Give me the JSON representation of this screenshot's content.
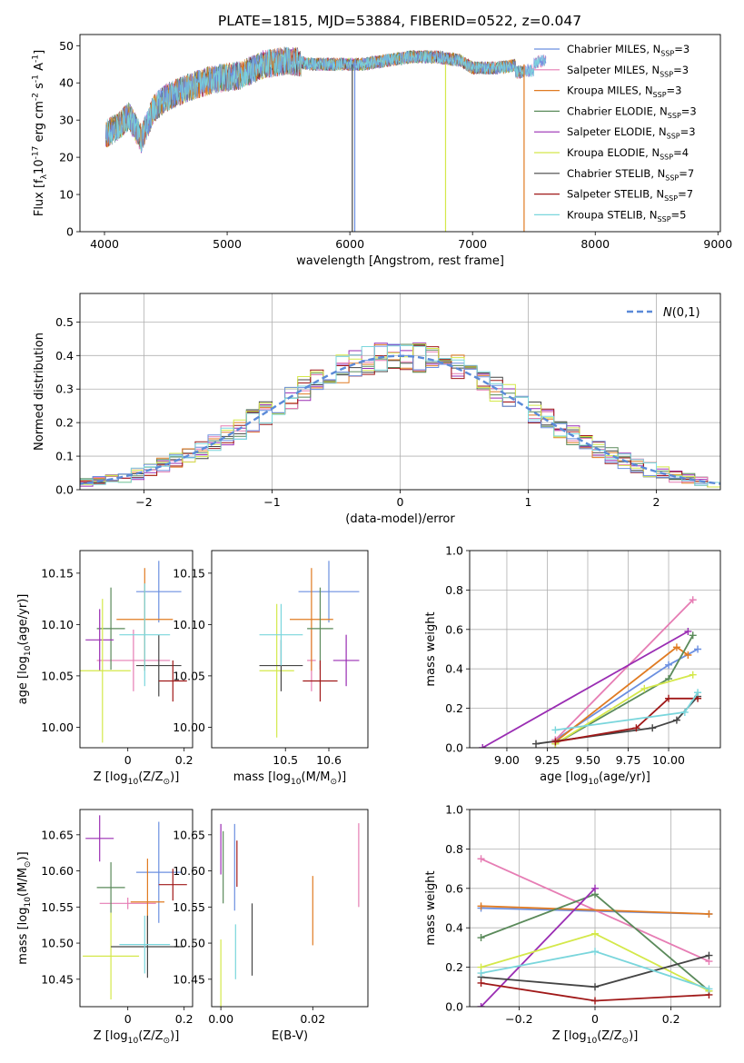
{
  "series_names": [
    "Chabrier MILES, N$_{SSP}$=3",
    "Salpeter MILES, N$_{SSP}$=3",
    "Kroupa MILES, N$_{SSP}$=3",
    "Chabrier ELODIE, N$_{SSP}$=3",
    "Salpeter ELODIE, N$_{SSP}$=3",
    "Kroupa ELODIE, N$_{SSP}$=4",
    "Chabrier STELIB, N$_{SSP}$=7",
    "Salpeter STELIB, N$_{SSP}$=7",
    "Kroupa STELIB, N$_{SSP}$=5"
  ],
  "series_colors": [
    "#6b8fe0",
    "#e67db4",
    "#e07b22",
    "#5a8a5a",
    "#9a2db3",
    "#d4e84a",
    "#454545",
    "#a01818",
    "#7ad6dc"
  ],
  "chart_data": [
    {
      "type": "line",
      "title": "PLATE=1815, MJD=53884, FIBERID=0522, z=0.047",
      "xlabel": "wavelength [Angstrom, rest frame]",
      "ylabel": "Flux [f$_\\lambda$10$^{-17}$ erg cm$^{-2}$ s$^{-1}$ A$^{-1}$]",
      "xlim": [
        3800,
        9020
      ],
      "ylim": [
        0,
        53
      ],
      "xticks": [
        4000,
        5000,
        6000,
        7000,
        8000,
        9000
      ],
      "yticks": [
        0,
        10,
        20,
        30,
        40,
        50
      ],
      "legend_position": "upper-right",
      "spectrum_envelope": {
        "x": [
          4000,
          4100,
          4200,
          4300,
          4400,
          4500,
          4700,
          4900,
          5100,
          5300,
          5500,
          5700,
          5900,
          6100,
          6300,
          6500,
          6700,
          6900,
          7000,
          7200,
          7400,
          7600
        ],
        "y": [
          26,
          28,
          31,
          25,
          33,
          36,
          39,
          41,
          42,
          45,
          46,
          45,
          45,
          45,
          46,
          47,
          47,
          46,
          44,
          44,
          45,
          46
        ]
      },
      "drop_lines": [
        {
          "x": 6020,
          "series_index": 6
        },
        {
          "x": 6040,
          "series_index": 0
        },
        {
          "x": 6780,
          "series_index": 5
        },
        {
          "x": 7420,
          "series_index": 2
        }
      ]
    },
    {
      "type": "histogram",
      "xlabel": "(data-model)/error",
      "ylabel": "Normed distribution",
      "xlim": [
        -2.5,
        2.5
      ],
      "ylim": [
        0,
        0.585
      ],
      "xticks": [
        -2,
        -1,
        0,
        1,
        2
      ],
      "yticks": [
        0.0,
        0.1,
        0.2,
        0.3,
        0.4,
        0.5
      ],
      "grid": true,
      "reference_curve": {
        "name": "$\\mathcal{N}(0,1)$",
        "mean": 0,
        "sigma": 1
      },
      "legend_position": "upper-right",
      "bin_width": 0.1
    },
    {
      "type": "scatter",
      "xlabel": "Z [log$_{10}$(Z/Z$_\\odot$)]",
      "ylabel": "age  [log$_{10}$(age/yr)]",
      "xlim": [
        -0.17,
        0.23
      ],
      "ylim": [
        9.98,
        10.172
      ],
      "xticks": [
        0.0,
        0.2
      ],
      "yticks": [
        10.0,
        10.05,
        10.1,
        10.15
      ],
      "points": [
        {
          "x": 0.11,
          "y": 10.132,
          "xerr": 0.08,
          "yerr": 0.03
        },
        {
          "x": 0.02,
          "y": 10.065,
          "xerr": 0.13,
          "yerr": 0.03
        },
        {
          "x": 0.06,
          "y": 10.105,
          "xerr": 0.1,
          "yerr": 0.05
        },
        {
          "x": -0.06,
          "y": 10.096,
          "xerr": 0.05,
          "yerr": 0.04
        },
        {
          "x": -0.1,
          "y": 10.085,
          "xerr": 0.05,
          "yerr": 0.03
        },
        {
          "x": -0.09,
          "y": 10.055,
          "xerr": 0.1,
          "yerr": 0.07
        },
        {
          "x": 0.11,
          "y": 10.06,
          "xerr": 0.08,
          "yerr": 0.03
        },
        {
          "x": 0.16,
          "y": 10.045,
          "xerr": 0.05,
          "yerr": 0.02
        },
        {
          "x": 0.06,
          "y": 10.09,
          "xerr": 0.09,
          "yerr": 0.05
        }
      ]
    },
    {
      "type": "scatter",
      "xlabel": "mass [log$_{10}$(M/M$_\\odot$)]",
      "xlim": [
        10.33,
        10.69
      ],
      "ylim": [
        9.98,
        10.172
      ],
      "xticks": [
        10.5,
        10.6
      ],
      "yticks": [
        10.0,
        10.05,
        10.1,
        10.15
      ],
      "points": [
        {
          "x": 10.6,
          "y": 10.132,
          "xerr": 0.07,
          "yerr": 0.03
        },
        {
          "x": 10.56,
          "y": 10.065,
          "xerr": 0.01,
          "yerr": 0.03
        },
        {
          "x": 10.56,
          "y": 10.105,
          "xerr": 0.05,
          "yerr": 0.05
        },
        {
          "x": 10.58,
          "y": 10.096,
          "xerr": 0.03,
          "yerr": 0.04
        },
        {
          "x": 10.64,
          "y": 10.065,
          "xerr": 0.03,
          "yerr": 0.025
        },
        {
          "x": 10.48,
          "y": 10.055,
          "xerr": 0.04,
          "yerr": 0.065
        },
        {
          "x": 10.49,
          "y": 10.06,
          "xerr": 0.05,
          "yerr": 0.025
        },
        {
          "x": 10.58,
          "y": 10.045,
          "xerr": 0.04,
          "yerr": 0.02
        },
        {
          "x": 10.49,
          "y": 10.09,
          "xerr": 0.05,
          "yerr": 0.03
        }
      ]
    },
    {
      "type": "line",
      "xlabel": "age  [log$_{10}$(age/yr)]",
      "ylabel": "mass weight",
      "xlim": [
        8.77,
        10.32
      ],
      "ylim": [
        0,
        1
      ],
      "xticks": [
        9.0,
        9.25,
        9.5,
        9.75,
        10.0
      ],
      "xticklabels": [
        "9.00",
        "9.25",
        "9.50",
        "9.75",
        "10.00"
      ],
      "yticks": [
        0.0,
        0.2,
        0.4,
        0.6,
        0.8,
        1.0
      ],
      "grid": true,
      "series": [
        {
          "x": [
            9.3,
            10.0,
            10.18
          ],
          "y": [
            0.04,
            0.42,
            0.5
          ]
        },
        {
          "x": [
            9.3,
            10.15
          ],
          "y": [
            0.04,
            0.75
          ]
        },
        {
          "x": [
            9.3,
            10.05,
            10.12
          ],
          "y": [
            0.03,
            0.51,
            0.47
          ]
        },
        {
          "x": [
            9.3,
            10.0,
            10.15
          ],
          "y": [
            0.02,
            0.35,
            0.57
          ]
        },
        {
          "x": [
            8.85,
            10.12
          ],
          "y": [
            0.0,
            0.59
          ]
        },
        {
          "x": [
            9.3,
            9.85,
            10.15
          ],
          "y": [
            0.02,
            0.3,
            0.37
          ]
        },
        {
          "x": [
            9.18,
            9.9,
            10.05,
            10.18
          ],
          "y": [
            0.02,
            0.1,
            0.14,
            0.26
          ]
        },
        {
          "x": [
            9.3,
            9.8,
            10.0,
            10.18
          ],
          "y": [
            0.03,
            0.1,
            0.25,
            0.25
          ]
        },
        {
          "x": [
            9.3,
            10.1,
            10.18
          ],
          "y": [
            0.09,
            0.18,
            0.28
          ]
        }
      ]
    },
    {
      "type": "scatter",
      "xlabel": "Z [log$_{10}$(Z/Z$_\\odot$)]",
      "ylabel": "mass [log$_{10}$(M/M$_\\odot$)]",
      "xlim": [
        -0.17,
        0.23
      ],
      "ylim": [
        10.412,
        10.685
      ],
      "xticks": [
        0.0,
        0.2
      ],
      "yticks": [
        10.45,
        10.5,
        10.55,
        10.6,
        10.65
      ],
      "points": [
        {
          "x": 0.11,
          "y": 10.598,
          "xerr": 0.08,
          "yerr": 0.07
        },
        {
          "x": 0.0,
          "y": 10.555,
          "xerr": 0.1,
          "yerr": 0.008
        },
        {
          "x": 0.07,
          "y": 10.557,
          "xerr": 0.06,
          "yerr": 0.06
        },
        {
          "x": -0.06,
          "y": 10.577,
          "xerr": 0.05,
          "yerr": 0.035
        },
        {
          "x": -0.1,
          "y": 10.645,
          "xerr": 0.05,
          "yerr": 0.032
        },
        {
          "x": -0.06,
          "y": 10.482,
          "xerr": 0.1,
          "yerr": 0.06
        },
        {
          "x": 0.07,
          "y": 10.495,
          "xerr": 0.13,
          "yerr": 0.043
        },
        {
          "x": 0.16,
          "y": 10.581,
          "xerr": 0.05,
          "yerr": 0.022
        },
        {
          "x": 0.06,
          "y": 10.498,
          "xerr": 0.09,
          "yerr": 0.04
        }
      ]
    },
    {
      "type": "scatter",
      "xlabel": "E(B-V)",
      "xlim": [
        -0.002,
        0.032
      ],
      "ylim": [
        10.412,
        10.685
      ],
      "xticks": [
        0.0,
        0.02
      ],
      "xticklabels": [
        "0.00",
        "0.02"
      ],
      "yticks": [
        10.45,
        10.5,
        10.55,
        10.6,
        10.65
      ],
      "points": [
        {
          "x": 0.003,
          "y": 10.605,
          "yerr": 0.06
        },
        {
          "x": 0.03,
          "y": 10.608,
          "yerr": 0.058
        },
        {
          "x": 0.02,
          "y": 10.545,
          "yerr": 0.048
        },
        {
          "x": 0.0005,
          "y": 10.605,
          "yerr": 0.05
        },
        {
          "x": 0.0,
          "y": 10.63,
          "yerr": 0.035
        },
        {
          "x": 0.0,
          "y": 10.455,
          "yerr": 0.05
        },
        {
          "x": 0.0068,
          "y": 10.505,
          "yerr": 0.05
        },
        {
          "x": 0.0035,
          "y": 10.61,
          "yerr": 0.032
        },
        {
          "x": 0.0032,
          "y": 10.488,
          "yerr": 0.038
        }
      ]
    },
    {
      "type": "line",
      "xlabel": "Z [log$_{10}$(Z/Z$_\\odot$)]",
      "ylabel": "mass weight",
      "xlim": [
        -0.33,
        0.33
      ],
      "ylim": [
        0,
        1
      ],
      "xticks": [
        -0.2,
        0.0,
        0.2
      ],
      "yticks": [
        0.0,
        0.2,
        0.4,
        0.6,
        0.8,
        1.0
      ],
      "grid": true,
      "series": [
        {
          "x": [
            -0.3,
            0.3
          ],
          "y": [
            0.5,
            0.47
          ]
        },
        {
          "x": [
            -0.3,
            0.3
          ],
          "y": [
            0.75,
            0.23
          ]
        },
        {
          "x": [
            -0.3,
            0.3
          ],
          "y": [
            0.51,
            0.47
          ]
        },
        {
          "x": [
            -0.3,
            0.0,
            0.3
          ],
          "y": [
            0.35,
            0.57,
            0.08
          ]
        },
        {
          "x": [
            -0.3,
            0.0
          ],
          "y": [
            0.0,
            0.6
          ]
        },
        {
          "x": [
            -0.3,
            0.0,
            0.3
          ],
          "y": [
            0.2,
            0.37,
            0.08
          ]
        },
        {
          "x": [
            -0.3,
            0.0,
            0.3
          ],
          "y": [
            0.15,
            0.1,
            0.26
          ]
        },
        {
          "x": [
            -0.3,
            0.0,
            0.3
          ],
          "y": [
            0.12,
            0.03,
            0.06
          ]
        },
        {
          "x": [
            -0.3,
            0.0,
            0.3
          ],
          "y": [
            0.17,
            0.28,
            0.09
          ]
        }
      ]
    }
  ]
}
